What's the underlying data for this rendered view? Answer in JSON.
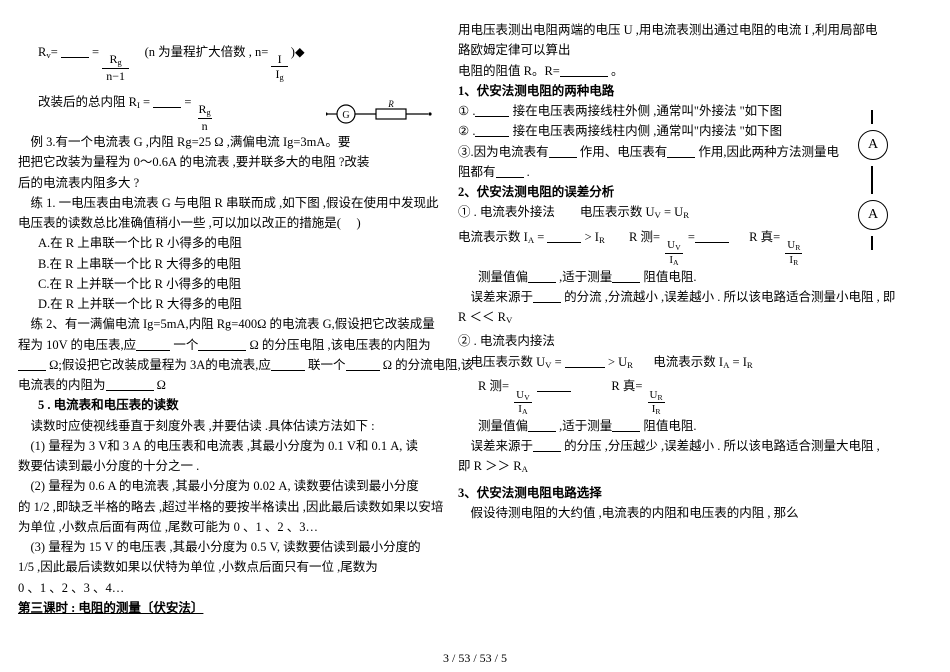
{
  "left": {
    "l1_pre": "R<sub>v</sub>=",
    "l1_post": " = ",
    "l1_frac_n": "R<sub>g</sub>",
    "l1_frac_d": "n−1",
    "l1_mid": "　(n 为量程扩大倍数 , ",
    "l1_frac2_pre": "n=",
    "l1_frac2_n": "I",
    "l1_frac2_d": "I<sub>g</sub>",
    "l1_tail": " )◆",
    "l2_pre": "改装后的总内阻",
    "l2_RI": "R<sub>I</sub> = ",
    "l2_post": " = ",
    "l2_frac_n": "R<sub>g</sub>",
    "l2_frac_d": "n",
    "ex3a": "　例 3.有一个电流表 G ,内阻 Rg=25 Ω  ,满偏电流 Ig=3mA。要",
    "ex3b": "把把它改装为量程为 0～0.6A 的电流表 ,要并联多大的电阻 ?改装",
    "ex3c": "后的电流表内阻多大 ?",
    "pr1a": "　练 1. 一电压表由电流表 G 与电阻 R 串联而成 ,如下图 ,假设在使用中发现此",
    "pr1b": "电压表的读数总比准确值稍小一些 ,可以加以改正的措施是(　 )",
    "optA": "A.在 R 上串联一个比 R 小得多的电阻",
    "optB": "B.在 R 上串联一个比 R 大得多的电阻",
    "optC": "C.在 R 上并联一个比 R 小得多的电阻",
    "optD": "D.在 R 上并联一个比 R 大得多的电阻",
    "pr2a": "　练 2、有一满偏电流 Ig=5mA,内阻 Rg=400Ω 的电流表 G,假设把它改装成量",
    "pr2b": "程为 10V 的电压表,应",
    "pr2b_mid": "一个",
    "pr2b_tail": "Ω 的分压电阻 ,该电压表的内阻为",
    "pr2c_pre": "Ω;假设把它改装成量程为 3A的电流表,应",
    "pr2c_mid": "联一个",
    "pr2c_tail": "Ω 的分流电阻,该",
    "pr2d": "电流表的内阻为",
    "pr2d_tail": "Ω",
    "h5": "5 . 电流表和电压表的读数",
    "r0": "　读数时应使视线垂直于刻度外表 ,并要估读 .具体估读方法如下 :",
    "r1a": "　(1) 量程为 3 V和 3 A 的电压表和电流表 ,其最小分度为 0.1 V和 0.1 A, 读",
    "r1b": "数要估读到最小分度的十分之一 .",
    "r2a": "　(2) 量程为 0.6 A 的电流表 ,其最小分度为 0.02 A, 读数要估读到最小分度",
    "r2b": "的 1/2 ,即缺乏半格的略去 ,超过半格的要按半格读出 ,因此最后读数如果以安培",
    "r2c": "为单位 ,小数点后面有两位 ,尾数可能为 0 、1 、2 、3…",
    "r3a": "　(3) 量程为 15 V 的电压表 ,其最小分度为 0.5 V, 读数要估读到最小分度的",
    "r3b": "1/5 ,因此最后读数如果以伏特为单位 ,小数点后面只有一位 ,尾数为",
    "r3c": "0 、1 、2 、3 、4…",
    "h_time3": "第三课时 : 电阻的测量〔伏安法〕"
  },
  "right": {
    "p0a": "用电压表测出电阻两端的电压 U ,用电流表测出通过电阻的电流 I ,利用局部电",
    "p0b": "路欧姆定律可以算出",
    "p0c_pre": "电阻的阻值 R。R=",
    "p0c_post": "。",
    "h1": "1、伏安法测电阻的两种电路",
    "c1": "① .",
    "c1_txt": " 接在电压表两接线柱外侧 ,通常叫\"外接法 \"如下图",
    "c2": "② .",
    "c2_txt": " 接在电压表两接线柱内侧 ,通常叫\"内接法 \"如下图",
    "c3a": "③.因为电流表有",
    "c3b": "作用、电压表有",
    "c3c": "作用,因此两种方法测量电",
    "c3d_pre": "阻都有",
    "c3d_post": " .",
    "h2": "2、伏安法测电阻的误差分析",
    "m1_pre": "① . 电流表外接法　　电压表示数 ",
    "m1_eq": "U<sub>V</sub> = U<sub>R</sub>",
    "m2_pre": "电流表示数 ",
    "m2_ia": "I<sub>A</sub> = ",
    "m2_gt": " &gt; ",
    "m2_ir": "I<sub>R</sub>",
    "m2_rpre": "R 测= ",
    "m2_rfrac_n": "U<sub>V</sub>",
    "m2_rfrac_d": "I<sub>A</sub>",
    "m2_rpost": " =",
    "m2_rtrue": "R 真=",
    "m2_rtfrac_n": "U<sub>R</sub>",
    "m2_rtfrac_d": "I<sub>R</sub>",
    "m3a": "测量值偏",
    "m3b": ",适于测量",
    "m3c": "阻值电阻.",
    "m4a": "　误差来源于",
    "m4b": "的分流 ,分流越小 ,误差越小 . 所以该电路适合测量小电阻 , 即",
    "m4c_pre": "R ＜＜ ",
    "m4c_rv": "R<sub>V</sub>",
    "n1": "② . 电流表内接法",
    "n2_pre": "　电压表示数 ",
    "n2_uv": "U<sub>V</sub> = ",
    "n2_gt": " &gt; ",
    "n2_ur": "U<sub>R</sub>",
    "n2_ipre": "电流表示数 ",
    "n2_ieq": "I<sub>A</sub> = I<sub>R</sub>",
    "n3_rpre": "R 测= ",
    "n3_rfrac_n": "U<sub>V</sub>",
    "n3_rfrac_d": "I<sub>A</sub>",
    "n3_mid": "　　　R 真=",
    "n3_rtfrac_n": "U<sub>R</sub>",
    "n3_rtfrac_d": "I<sub>R</sub>",
    "n4a": "测量值偏",
    "n4b": ",适于测量",
    "n4c": "阻值电阻.",
    "n5a": "　误差来源于",
    "n5b": "的分压 ,分压越少 ,误差越小 . 所以该电路适合测量大电阻 ,",
    "n5c_pre": "即 R ＞＞ ",
    "n5c_ra": "R<sub>A</sub>",
    "h3": "3、伏安法测电阻电路选择",
    "sel": "　假设待测电阻的大约值 ,电流表的内阻和电压表的内阻 , 那么"
  },
  "far": {
    "amm": "A"
  },
  "footer": "3 / 53 / 53 / 5"
}
